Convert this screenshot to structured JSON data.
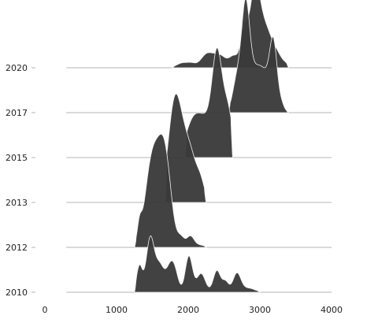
{
  "chart_data": {
    "type": "area",
    "subtype": "ridgeline",
    "title": "",
    "xlabel": "",
    "ylabel": "",
    "xlim": [
      0,
      4000
    ],
    "x_ticks": [
      "0",
      "1000",
      "2000",
      "3000",
      "4000"
    ],
    "x_tick_values": [
      0,
      1000,
      2000,
      3000,
      4000
    ],
    "rows": [
      "2010",
      "2012",
      "2013",
      "2015",
      "2017",
      "2020"
    ],
    "baseline_extent": [
      300,
      4000
    ],
    "series": [
      {
        "name": "2010",
        "peaks": [
          {
            "center": 1320,
            "height": 0.45,
            "width": 40
          },
          {
            "center": 1470,
            "height": 0.92,
            "width": 55
          },
          {
            "center": 1600,
            "height": 0.45,
            "width": 60
          },
          {
            "center": 1750,
            "height": 0.42,
            "width": 60
          },
          {
            "center": 1820,
            "height": 0.22,
            "width": 50
          },
          {
            "center": 2010,
            "height": 0.62,
            "width": 50
          },
          {
            "center": 2180,
            "height": 0.32,
            "width": 60
          },
          {
            "center": 2400,
            "height": 0.37,
            "width": 50
          },
          {
            "center": 2520,
            "height": 0.18,
            "width": 45
          },
          {
            "center": 2680,
            "height": 0.32,
            "width": 55
          },
          {
            "center": 2840,
            "height": 0.07,
            "width": 90
          }
        ],
        "range": [
          1250,
          3000
        ]
      },
      {
        "name": "2012",
        "peaks": [
          {
            "center": 1320,
            "height": 0.28,
            "width": 30
          },
          {
            "center": 1480,
            "height": 1.25,
            "width": 90
          },
          {
            "center": 1620,
            "height": 1.05,
            "width": 90
          },
          {
            "center": 1700,
            "height": 0.85,
            "width": 80
          },
          {
            "center": 1900,
            "height": 0.16,
            "width": 50
          },
          {
            "center": 2030,
            "height": 0.18,
            "width": 50
          },
          {
            "center": 2150,
            "height": 0.04,
            "width": 80
          }
        ],
        "range": [
          1250,
          2250
        ]
      },
      {
        "name": "2013",
        "peaks": [
          {
            "center": 1800,
            "height": 1.0,
            "width": 85
          },
          {
            "center": 1880,
            "height": 0.95,
            "width": 120
          },
          {
            "center": 2050,
            "height": 0.55,
            "width": 100
          },
          {
            "center": 2180,
            "height": 0.18,
            "width": 50
          }
        ],
        "range": [
          1680,
          2250
        ]
      },
      {
        "name": "2015",
        "peaks": [
          {
            "center": 2050,
            "height": 0.4,
            "width": 100
          },
          {
            "center": 2250,
            "height": 0.65,
            "width": 150
          },
          {
            "center": 2400,
            "height": 1.3,
            "width": 65
          },
          {
            "center": 2520,
            "height": 0.55,
            "width": 80
          },
          {
            "center": 2570,
            "height": 0.3,
            "width": 60
          }
        ],
        "range": [
          1960,
          2620
        ]
      },
      {
        "name": "2017",
        "peaks": [
          {
            "center": 2680,
            "height": 0.5,
            "width": 60
          },
          {
            "center": 2800,
            "height": 1.45,
            "width": 55
          },
          {
            "center": 2900,
            "height": 0.6,
            "width": 120
          },
          {
            "center": 3080,
            "height": 0.5,
            "width": 110
          },
          {
            "center": 3190,
            "height": 0.95,
            "width": 50
          },
          {
            "center": 3300,
            "height": 0.1,
            "width": 40
          }
        ],
        "range": [
          2560,
          3400
        ]
      },
      {
        "name": "2020",
        "peaks": [
          {
            "center": 1920,
            "height": 0.08,
            "width": 80
          },
          {
            "center": 2050,
            "height": 0.06,
            "width": 60
          },
          {
            "center": 2250,
            "height": 0.2,
            "width": 80
          },
          {
            "center": 2430,
            "height": 0.22,
            "width": 100
          },
          {
            "center": 2640,
            "height": 0.18,
            "width": 60
          },
          {
            "center": 2780,
            "height": 0.6,
            "width": 50
          },
          {
            "center": 2930,
            "height": 1.3,
            "width": 70
          },
          {
            "center": 3080,
            "height": 0.65,
            "width": 90
          },
          {
            "center": 3250,
            "height": 0.18,
            "width": 70
          },
          {
            "center": 3370,
            "height": 0.04,
            "width": 40
          }
        ],
        "range": [
          1780,
          3400
        ]
      }
    ],
    "colors": {
      "fill": "#3a3a3a",
      "edge": "#f2f2f2",
      "baseline": "#b4b4b4",
      "text": "#222222"
    },
    "grid": false,
    "legend": "none"
  }
}
